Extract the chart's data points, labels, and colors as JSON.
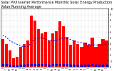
{
  "title": "Solar PV/Inverter Performance Monthly Solar Energy Production Value Running Average",
  "months": [
    "J",
    "F",
    "M",
    "A",
    "M",
    "J",
    "J",
    "A",
    "S",
    "O",
    "N",
    "D",
    "J",
    "F",
    "M",
    "A",
    "M",
    "J",
    "J",
    "A",
    "S",
    "O",
    "N",
    "D",
    "J",
    "F",
    "M",
    "A",
    "M",
    "J"
  ],
  "bar_values": [
    4.8,
    4.0,
    2.8,
    1.5,
    1.8,
    3.5,
    4.0,
    4.5,
    8.8,
    8.0,
    6.5,
    5.8,
    6.0,
    4.5,
    5.8,
    6.2,
    7.8,
    7.0,
    5.2,
    3.8,
    4.5,
    4.0,
    3.5,
    4.2,
    3.8,
    5.0,
    3.5,
    4.0,
    4.8,
    4.5
  ],
  "dot_values": [
    0.35,
    0.35,
    0.25,
    0.2,
    0.2,
    0.3,
    0.3,
    0.35,
    0.45,
    0.45,
    0.35,
    0.35,
    0.35,
    0.3,
    0.35,
    0.35,
    0.45,
    0.45,
    0.35,
    0.3,
    0.3,
    0.3,
    0.25,
    0.3,
    0.3,
    0.35,
    0.3,
    0.3,
    0.3,
    0.3
  ],
  "running_avg": [
    5.5,
    5.1,
    4.5,
    4.2,
    3.9,
    3.6,
    3.5,
    3.5,
    4.2,
    4.8,
    5.0,
    5.0,
    4.8,
    4.5,
    4.5,
    4.6,
    4.8,
    5.0,
    4.9,
    4.7,
    4.5,
    4.3,
    4.2,
    4.0,
    3.9,
    3.8,
    3.8,
    3.7,
    3.8,
    3.9
  ],
  "bar_color": "#ff0000",
  "dot_color": "#0000ff",
  "line_color": "#0000ee",
  "bg_color": "#ffffff",
  "plot_bg": "#ffffff",
  "ylim": [
    0,
    10.0
  ],
  "title_fontsize": 3.5,
  "tick_fontsize": 3.0
}
